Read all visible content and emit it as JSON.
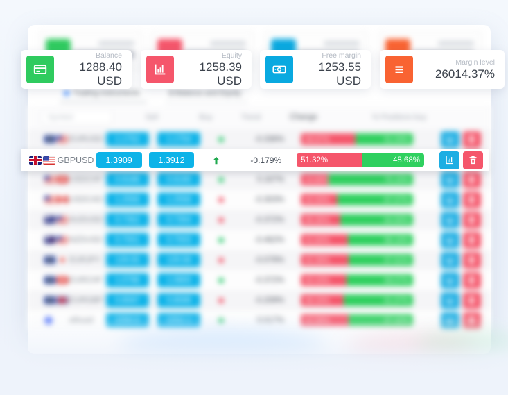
{
  "colors": {
    "accent_blue": "#0db3e8",
    "bar_green": "#2fd05f",
    "bar_red": "#f5566b",
    "card_green": "#2fcb5f",
    "card_red": "#f5566b",
    "card_blue": "#09a9e0",
    "card_orange": "#f96332"
  },
  "cards": [
    {
      "label": "Balance",
      "value": "1288.40 USD",
      "icon": "credit-card-icon",
      "color": "#2fcb5f"
    },
    {
      "label": "Equity",
      "value": "1258.39 USD",
      "icon": "bar-chart-icon",
      "color": "#f5566b"
    },
    {
      "label": "Free margin",
      "value": "1253.55 USD",
      "icon": "banknote-icon",
      "color": "#09a9e0"
    },
    {
      "label": "Margin level",
      "value": "26014.37%",
      "icon": "list-icon",
      "color": "#f96332"
    }
  ],
  "tabs": [
    {
      "label": "Trading instruments",
      "active": true
    },
    {
      "label": "$ Balance and Equity",
      "active": false
    }
  ],
  "table": {
    "search_placeholder": "Symbol",
    "headers": [
      "Sell",
      "Buy",
      "Trend",
      "Change",
      "% Positions buy"
    ],
    "focused_row": {
      "symbol": "GBPUSD",
      "flags": [
        "gb",
        "us"
      ],
      "sell": "1.3909",
      "buy": "1.3912",
      "trend": "up",
      "change": "-0.179%",
      "sell_pct": 51.32,
      "buy_pct": 48.68,
      "sell_label": "51.32%",
      "buy_label": "48.68%"
    },
    "rows": [
      {
        "symbol": "EURUSD",
        "flags": [
          "eu",
          "us"
        ],
        "sell": "1.1752",
        "buy": "1.1754",
        "trend": "up",
        "change": "-0.336%",
        "sell_pct": 48.97,
        "sell_label": "48.97%",
        "buy_label": "51.03%"
      },
      {
        "symbol": "USDJPY",
        "flags": [
          "us",
          "jp"
        ],
        "sell": "110.25",
        "buy": "110.27",
        "trend": "down",
        "change": "0.465%",
        "sell_pct": 38.31,
        "sell_label": "38.31%",
        "buy_label": "61.69%"
      },
      {
        "symbol": "USDCHF",
        "flags": [
          "us",
          "ch"
        ],
        "sell": "0.9188",
        "buy": "0.9190",
        "trend": "up",
        "change": "0.167%",
        "sell_pct": 24.85,
        "sell_label": "24.85%",
        "buy_label": "75.15%"
      },
      {
        "symbol": "USDCAD",
        "flags": [
          "us",
          "ca"
        ],
        "sell": "1.2556",
        "buy": "1.2558",
        "trend": "down",
        "change": "-0.303%",
        "sell_pct": 32.93,
        "sell_label": "32.93%",
        "buy_label": "67.07%"
      },
      {
        "symbol": "AUDUSD",
        "flags": [
          "au",
          "us"
        ],
        "sell": "0.7352",
        "buy": "0.7354",
        "trend": "down",
        "change": "-0.372%",
        "sell_pct": 35.35,
        "sell_label": "35.35%",
        "buy_label": "64.65%"
      },
      {
        "symbol": "NZDUSD",
        "flags": [
          "nz",
          "us"
        ],
        "sell": "0.7001",
        "buy": "0.7003",
        "trend": "up",
        "change": "-0.462%",
        "sell_pct": 41.84,
        "sell_label": "41.84%",
        "buy_label": "58.16%"
      },
      {
        "symbol": "EURJPY",
        "flags": [
          "eu",
          "jp"
        ],
        "sell": "129.55",
        "buy": "129.58",
        "trend": "down",
        "change": "-0.079%",
        "sell_pct": 42.39,
        "sell_label": "42.39%",
        "buy_label": "57.61%"
      },
      {
        "symbol": "EURCHF",
        "flags": [
          "eu",
          "ch"
        ],
        "sell": "1.0798",
        "buy": "1.0800",
        "trend": "up",
        "change": "-0.372%",
        "sell_pct": 40.43,
        "sell_label": "40.43%",
        "buy_label": "59.57%"
      },
      {
        "symbol": "EURGBP",
        "flags": [
          "eu",
          "gb"
        ],
        "sell": "0.8597",
        "buy": "0.8599",
        "trend": "down",
        "change": "-0.209%",
        "sell_pct": 38.33,
        "sell_label": "38.33%",
        "buy_label": "61.67%"
      },
      {
        "symbol": "ethusd",
        "flags": [
          "eth"
        ],
        "sell": "2250.5",
        "buy": "2252.1",
        "trend": "up",
        "change": "0.017%",
        "sell_pct": 42.58,
        "sell_label": "42.58%",
        "buy_label": "57.42%"
      }
    ]
  }
}
